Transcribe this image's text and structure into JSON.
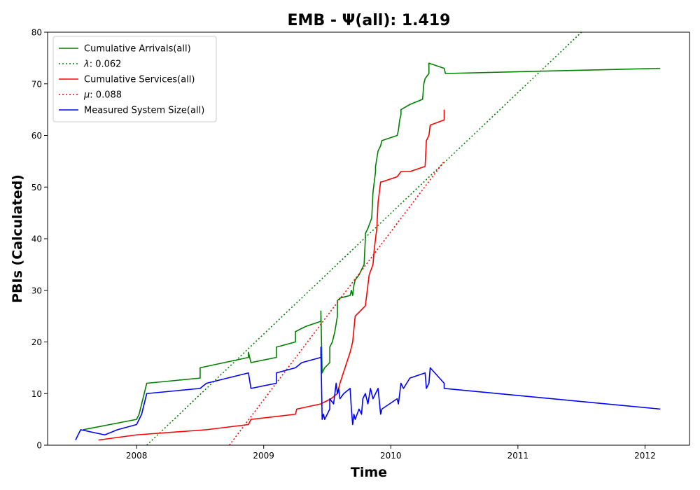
{
  "chart_data": {
    "type": "line",
    "title": "EMB -  Ψ(all): 1.419",
    "xlabel": "Time",
    "ylabel": "PBIs (Calculated)",
    "xlim": [
      2007.3,
      2012.35
    ],
    "ylim": [
      0,
      80
    ],
    "x_ticks": [
      {
        "value": 2008,
        "label": "2008"
      },
      {
        "value": 2009,
        "label": "2009"
      },
      {
        "value": 2010,
        "label": "2010"
      },
      {
        "value": 2011,
        "label": "2011"
      },
      {
        "value": 2012,
        "label": "2012"
      }
    ],
    "y_ticks": [
      {
        "value": 0,
        "label": "0"
      },
      {
        "value": 10,
        "label": "10"
      },
      {
        "value": 20,
        "label": "20"
      },
      {
        "value": 30,
        "label": "30"
      },
      {
        "value": 40,
        "label": "40"
      },
      {
        "value": 50,
        "label": "50"
      },
      {
        "value": 60,
        "label": "60"
      },
      {
        "value": 70,
        "label": "70"
      },
      {
        "value": 80,
        "label": "80"
      }
    ],
    "grid": false,
    "legend_position": "top-left",
    "series": [
      {
        "name": "Cumulative Arrivals(all)",
        "color": "#008000",
        "style": "solid",
        "x": [
          2007.58,
          2008.0,
          2008.02,
          2008.04,
          2008.06,
          2008.08,
          2008.5,
          2008.5,
          2008.88,
          2008.88,
          2008.9,
          2009.1,
          2009.1,
          2009.25,
          2009.25,
          2009.33,
          2009.45,
          2009.45,
          2009.46,
          2009.48,
          2009.52,
          2009.52,
          2009.54,
          2009.56,
          2009.58,
          2009.58,
          2009.6,
          2009.68,
          2009.69,
          2009.7,
          2009.71,
          2009.72,
          2009.75,
          2009.79,
          2009.8,
          2009.8,
          2009.82,
          2009.85,
          2009.86,
          2009.88,
          2009.88,
          2009.9,
          2009.92,
          2009.93,
          2010.05,
          2010.06,
          2010.07,
          2010.08,
          2010.08,
          2010.15,
          2010.25,
          2010.26,
          2010.27,
          2010.3,
          2010.3,
          2010.42,
          2010.43,
          2012.12
        ],
        "y": [
          3,
          5,
          6,
          8,
          10,
          12,
          13,
          15,
          17,
          18,
          16,
          17,
          19,
          20,
          22,
          23,
          24,
          26,
          14,
          15,
          16,
          19,
          20,
          22,
          25,
          28,
          28.5,
          29,
          30,
          29,
          31,
          32,
          33,
          35,
          40,
          41,
          42,
          44,
          49,
          53,
          54,
          57,
          58,
          59,
          60,
          61,
          63,
          64,
          65,
          66,
          67,
          70,
          71,
          72,
          74,
          73,
          72,
          73
        ]
      },
      {
        "name": "λ: 0.062",
        "color": "#008000",
        "style": "dotted",
        "x": [
          2008.08,
          2011.5
        ],
        "y": [
          0,
          80
        ]
      },
      {
        "name": "Cumulative Services(all)",
        "color": "#ff0000",
        "style": "solid",
        "x": [
          2007.7,
          2008.0,
          2008.55,
          2008.88,
          2008.9,
          2009.25,
          2009.26,
          2009.45,
          2009.53,
          2009.58,
          2009.59,
          2009.6,
          2009.68,
          2009.69,
          2009.7,
          2009.72,
          2009.8,
          2009.82,
          2009.83,
          2009.86,
          2009.87,
          2009.89,
          2009.9,
          2009.92,
          2009.93,
          2010.05,
          2010.08,
          2010.15,
          2010.27,
          2010.28,
          2010.3,
          2010.31,
          2010.42,
          2010.42
        ],
        "y": [
          1,
          2,
          3,
          4,
          5,
          6,
          7,
          8,
          9,
          10,
          11,
          12,
          18,
          19,
          20,
          25,
          27,
          31,
          33,
          35,
          38,
          42,
          47,
          51,
          51,
          52,
          53,
          53,
          54,
          59,
          60,
          62,
          63,
          65
        ]
      },
      {
        "name": "μ: 0.088",
        "color": "#ff0000",
        "style": "dotted",
        "x": [
          2008.73,
          2010.42
        ],
        "y": [
          0,
          55
        ]
      },
      {
        "name": "Measured System Size(all)",
        "color": "#0000ff",
        "style": "solid",
        "x": [
          2007.52,
          2007.56,
          2007.75,
          2007.85,
          2008.0,
          2008.02,
          2008.04,
          2008.06,
          2008.08,
          2008.5,
          2008.55,
          2008.88,
          2008.9,
          2009.1,
          2009.1,
          2009.25,
          2009.3,
          2009.45,
          2009.45,
          2009.46,
          2009.47,
          2009.48,
          2009.52,
          2009.52,
          2009.55,
          2009.57,
          2009.58,
          2009.59,
          2009.6,
          2009.63,
          2009.68,
          2009.69,
          2009.7,
          2009.71,
          2009.72,
          2009.75,
          2009.77,
          2009.78,
          2009.8,
          2009.82,
          2009.84,
          2009.86,
          2009.88,
          2009.9,
          2009.92,
          2009.93,
          2010.05,
          2010.06,
          2010.08,
          2010.1,
          2010.15,
          2010.27,
          2010.28,
          2010.3,
          2010.31,
          2010.42,
          2010.42,
          2012.12
        ],
        "y": [
          1,
          3,
          2,
          3,
          4,
          5,
          6,
          8,
          10,
          11,
          12,
          14,
          11,
          12,
          14,
          15,
          16,
          17,
          19,
          5,
          6,
          5,
          7,
          9,
          8,
          12,
          10,
          11,
          9,
          10,
          11,
          7,
          4,
          6,
          5,
          7,
          6,
          9,
          10,
          8,
          11,
          9,
          10,
          11,
          6,
          7,
          9,
          8,
          12,
          11,
          13,
          14,
          11,
          12,
          15,
          12,
          11,
          7
        ]
      }
    ],
    "legend": [
      {
        "label_prefix": "",
        "label": "Cumulative Arrivals(all)",
        "color": "#008000",
        "style": "solid"
      },
      {
        "label_prefix": "λ",
        "label": ": 0.062",
        "color": "#008000",
        "style": "dotted"
      },
      {
        "label_prefix": "",
        "label": "Cumulative Services(all)",
        "color": "#ff0000",
        "style": "solid"
      },
      {
        "label_prefix": "μ",
        "label": ": 0.088",
        "color": "#ff0000",
        "style": "dotted"
      },
      {
        "label_prefix": "",
        "label": "Measured System Size(all)",
        "color": "#0000ff",
        "style": "solid"
      }
    ]
  }
}
